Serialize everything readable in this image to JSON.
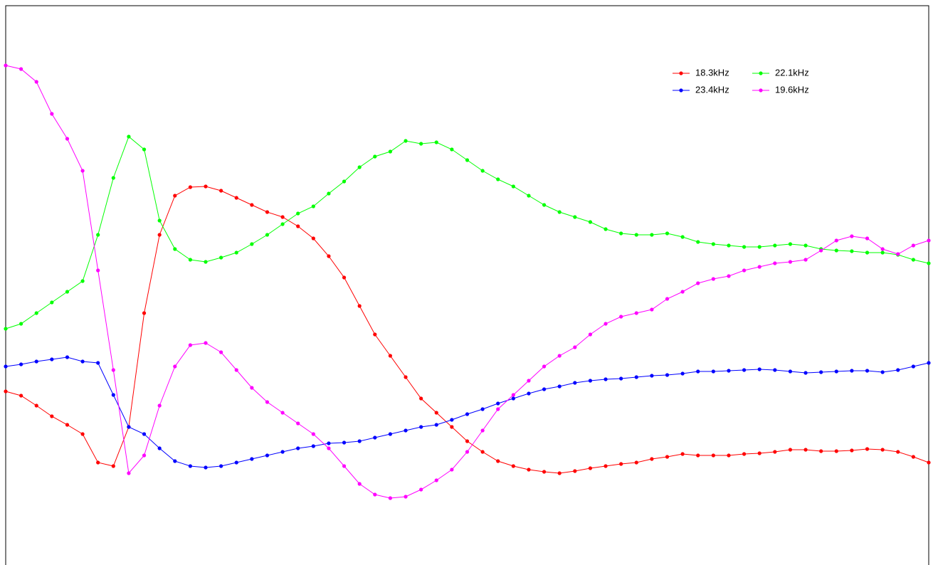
{
  "chart_data": {
    "type": "line",
    "ylim": [
      0,
      786
    ],
    "legend": "upper right",
    "series": [
      {
        "name": "18.3kHz",
        "color": "#ff0000",
        "values": [
          244,
          238,
          224,
          209,
          197,
          184,
          144,
          139,
          194,
          354,
          464,
          519,
          531,
          532,
          526,
          516,
          506,
          496,
          489,
          476,
          459,
          434,
          404,
          364,
          324,
          294,
          264,
          234,
          214,
          194,
          174,
          159,
          146,
          139,
          134,
          131,
          129,
          132,
          136,
          139,
          142,
          144,
          149,
          152,
          156,
          154,
          154,
          154,
          156,
          157,
          159,
          162,
          162,
          160,
          160,
          161,
          163,
          162,
          159,
          152,
          144
        ]
      },
      {
        "name": "22.1kHz",
        "color": "#00ff00",
        "values": [
          332,
          339,
          354,
          369,
          384,
          399,
          464,
          544,
          602,
          584,
          484,
          444,
          429,
          426,
          432,
          439,
          451,
          464,
          479,
          494,
          504,
          522,
          539,
          559,
          574,
          581,
          596,
          592,
          594,
          584,
          569,
          554,
          542,
          532,
          519,
          506,
          496,
          489,
          482,
          472,
          466,
          464,
          464,
          466,
          461,
          454,
          451,
          449,
          447,
          447,
          449,
          451,
          449,
          444,
          442,
          441,
          439,
          439,
          436,
          429,
          424
        ]
      },
      {
        "name": "23.4kHz",
        "color": "#0000ff",
        "values": [
          279,
          282,
          286,
          289,
          292,
          286,
          284,
          239,
          194,
          184,
          164,
          146,
          139,
          137,
          139,
          144,
          149,
          154,
          159,
          164,
          167,
          171,
          172,
          174,
          179,
          184,
          189,
          194,
          197,
          204,
          212,
          219,
          227,
          234,
          241,
          247,
          251,
          256,
          259,
          261,
          262,
          264,
          266,
          267,
          269,
          272,
          272,
          273,
          274,
          275,
          274,
          272,
          270,
          271,
          272,
          273,
          273,
          271,
          274,
          279,
          284
        ]
      },
      {
        "name": "19.6kHz",
        "color": "#ff00ff",
        "values": [
          702,
          697,
          679,
          634,
          599,
          554,
          414,
          274,
          129,
          154,
          224,
          279,
          309,
          312,
          299,
          274,
          249,
          229,
          214,
          199,
          184,
          164,
          139,
          114,
          99,
          94,
          96,
          106,
          119,
          134,
          159,
          189,
          219,
          239,
          259,
          279,
          294,
          306,
          324,
          339,
          349,
          354,
          359,
          374,
          384,
          396,
          402,
          406,
          414,
          419,
          424,
          426,
          429,
          442,
          456,
          462,
          459,
          444,
          437,
          449,
          456
        ]
      }
    ]
  }
}
